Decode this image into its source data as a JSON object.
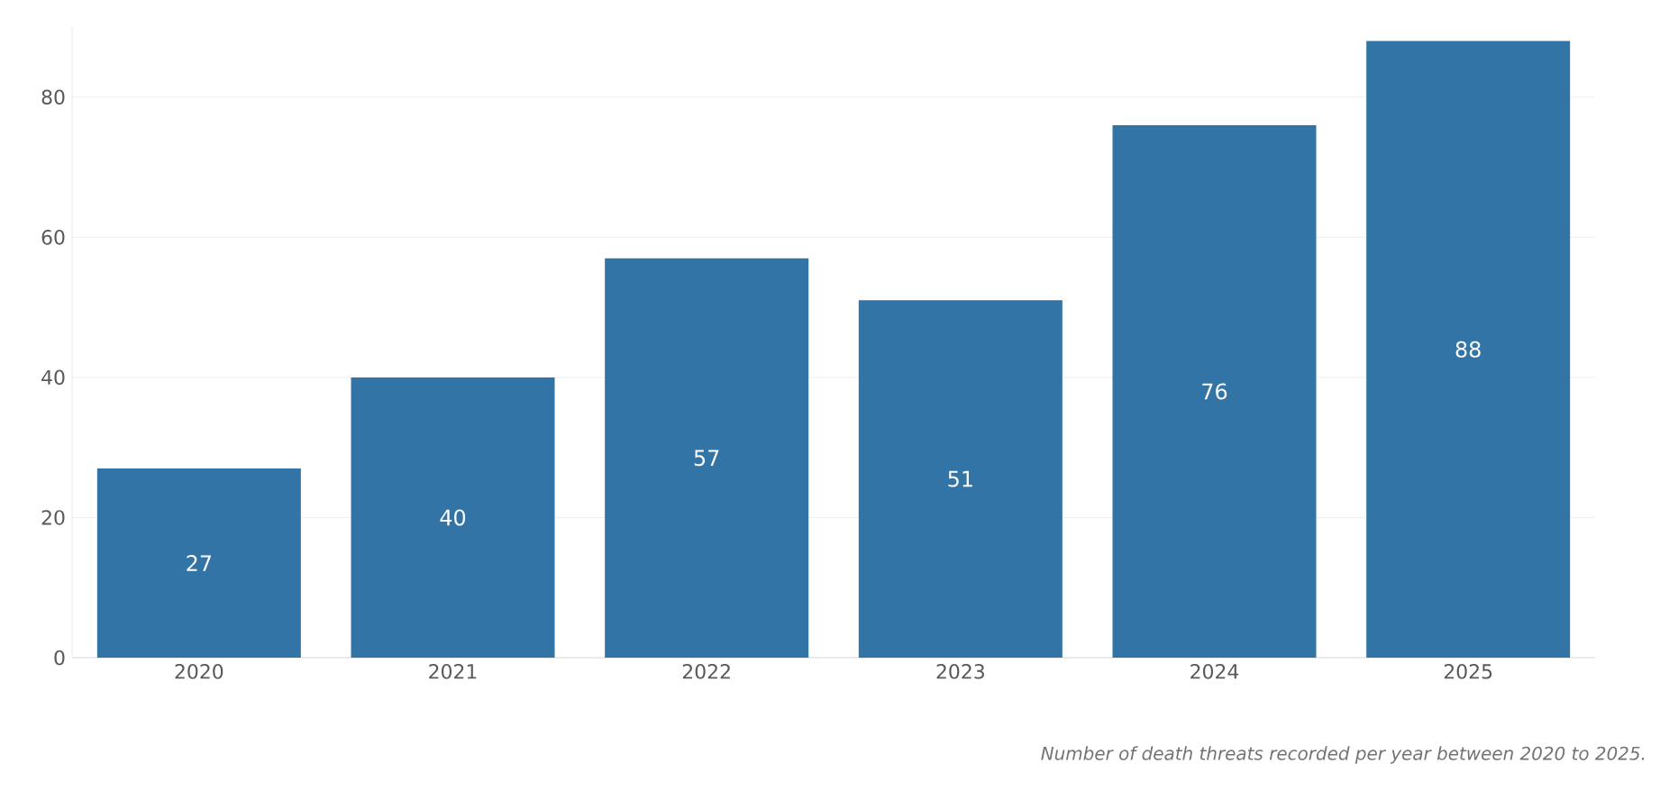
{
  "chart_data": {
    "type": "bar",
    "categories": [
      "2020",
      "2021",
      "2022",
      "2023",
      "2024",
      "2025"
    ],
    "values": [
      27,
      40,
      57,
      51,
      76,
      88
    ],
    "color": "#3274a6",
    "ylim": [
      0,
      90
    ],
    "yticks": [
      0,
      20,
      40,
      60,
      80
    ],
    "grid": "y",
    "data_labels": true,
    "annotations": [
      "Number of death threats recorded per year between 2020 to 2025."
    ]
  }
}
